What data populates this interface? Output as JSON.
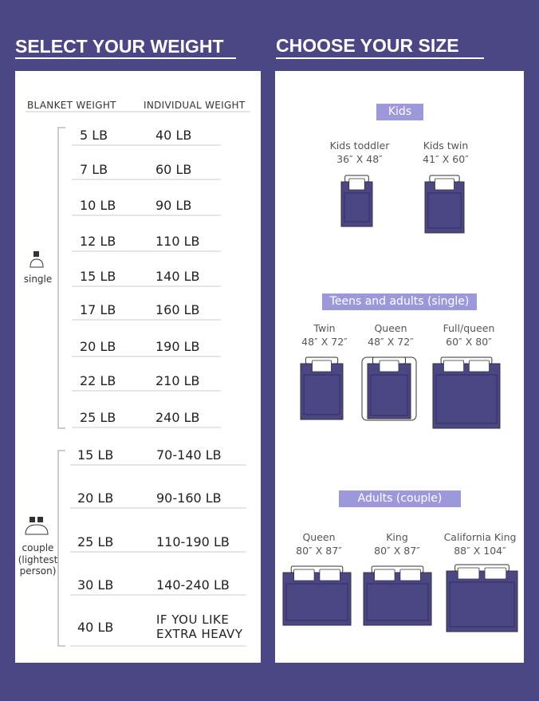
{
  "left": {
    "title": "SELECT YOUR WEIGHT",
    "headers": [
      "BLANKET WEIGHT",
      "INDIVIDUAL WEIGHT"
    ],
    "groups": [
      {
        "label": "single",
        "rows": [
          [
            "5 LB",
            "40 LB"
          ],
          [
            "7 LB",
            "60 LB"
          ],
          [
            "10 LB",
            "90 LB"
          ],
          [
            "12 LB",
            "110 LB"
          ],
          [
            "15 LB",
            "140 LB"
          ],
          [
            "17 LB",
            "160 LB"
          ],
          [
            "20 LB",
            "190 LB"
          ],
          [
            "22 LB",
            "210 LB"
          ],
          [
            "25 LB",
            "240 LB"
          ]
        ]
      },
      {
        "label": "couple (lightest person)",
        "rows": [
          [
            "15 LB",
            "70-140 LB"
          ],
          [
            "20 LB",
            "90-160 LB"
          ],
          [
            "25 LB",
            "110-190 LB"
          ],
          [
            "30 LB",
            "140-240 LB"
          ],
          [
            "40 LB",
            "IF YOU LIKE EXTRA HEAVY"
          ]
        ]
      }
    ]
  },
  "right": {
    "title": "CHOOSE YOUR SIZE",
    "sections": [
      {
        "label": "Kids",
        "beds": [
          {
            "name": "Kids toddler",
            "size": "36″ X 48″"
          },
          {
            "name": "Kids twin",
            "size": "41″ X 60″"
          }
        ]
      },
      {
        "label": "Teens and adults (single)",
        "beds": [
          {
            "name": "Twin",
            "size": "48″ X 72″"
          },
          {
            "name": "Queen",
            "size": "48″ X 72″"
          },
          {
            "name": "Full/queen",
            "size": "60″ X 80″"
          }
        ]
      },
      {
        "label": "Adults (couple)",
        "beds": [
          {
            "name": "Queen",
            "size": "80″ X 87″"
          },
          {
            "name": "King",
            "size": "80″ X 87″"
          },
          {
            "name": "California King",
            "size": "88″ X 104″"
          }
        ]
      }
    ]
  }
}
